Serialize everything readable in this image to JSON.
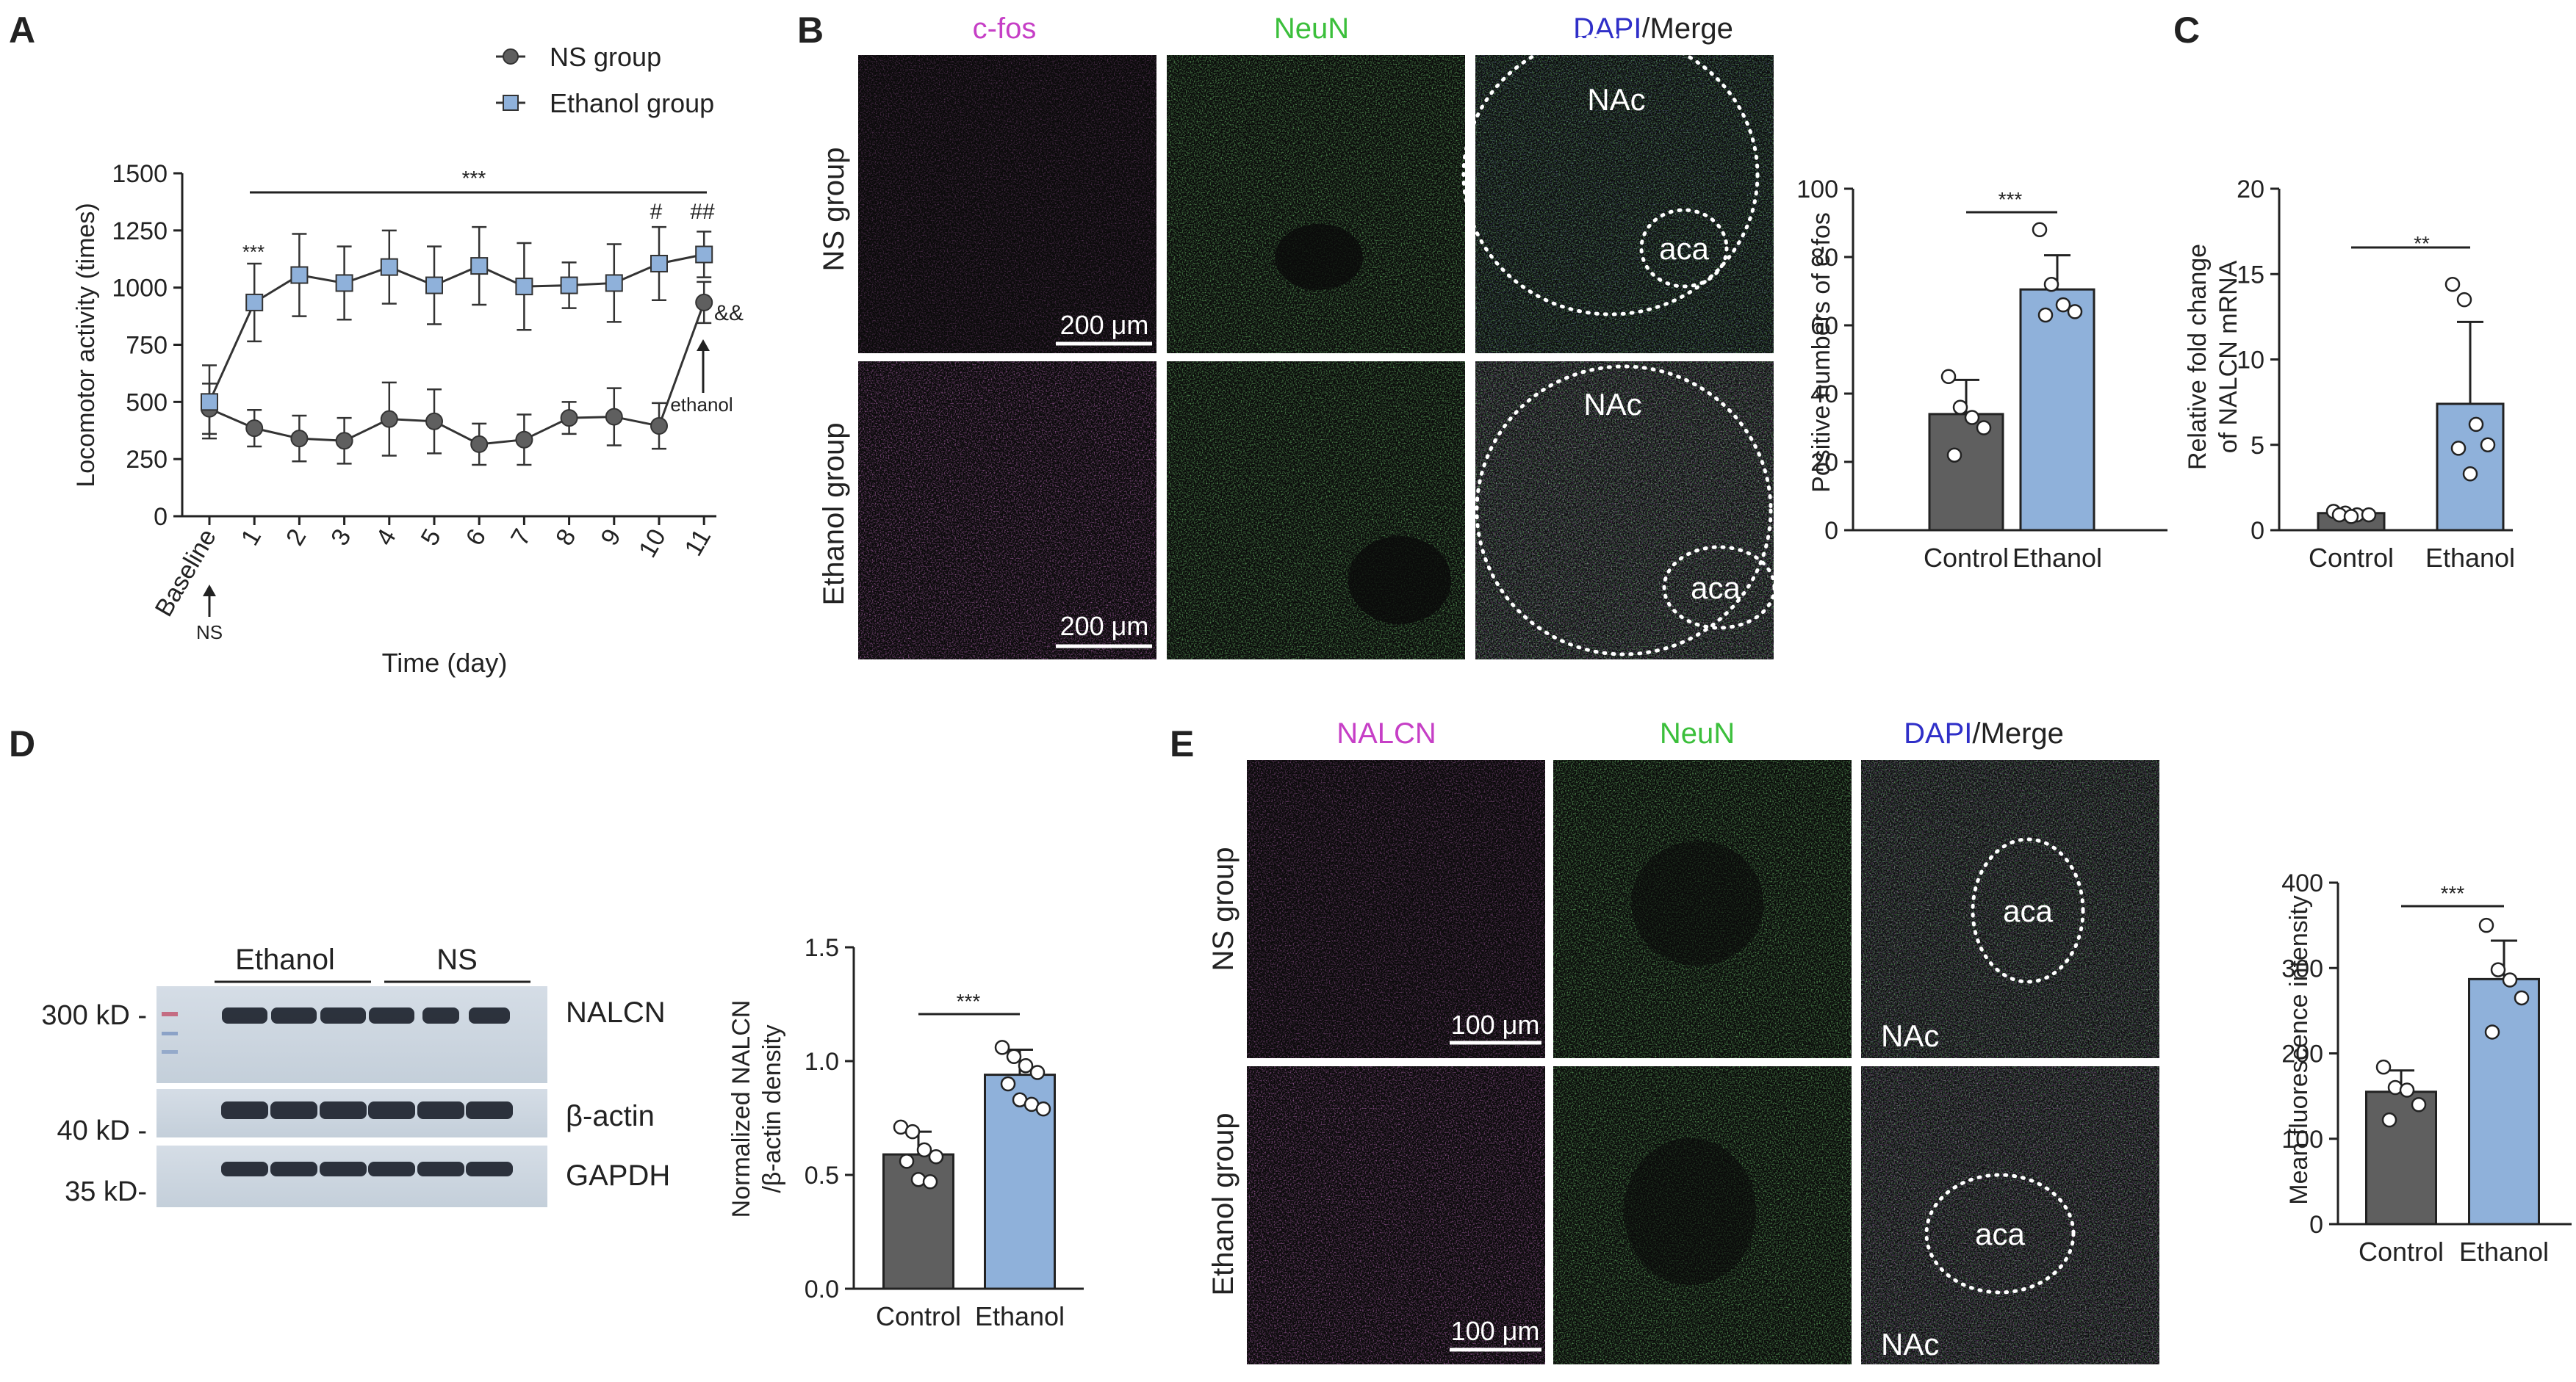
{
  "panel_letters": {
    "A": "A",
    "B": "B",
    "C": "C",
    "D": "D",
    "E": "E"
  },
  "colors": {
    "ns": "#5f5f5f",
    "ethanol": "#8fb1da",
    "cfos": "#c63fc6",
    "neun": "#3bbf3b",
    "dapi": "#2f2fc8",
    "micrograph_bg": "#0a0a0a"
  },
  "panel_a": {
    "legend": [
      "NS group",
      "Ethanol group"
    ],
    "ylabel": "Locomotor activity (times)",
    "xlabel": "Time (day)",
    "x_ticks": [
      "Baseline",
      "1",
      "2",
      "3",
      "4",
      "5",
      "6",
      "7",
      "8",
      "9",
      "10",
      "11"
    ],
    "y_ticks": [
      "0",
      "250",
      "500",
      "750",
      "1000",
      "1250",
      "1500"
    ],
    "sig_top": "***",
    "sig_day1": "***",
    "sig_day10": "#",
    "sig_day11": "##",
    "sig_ns11": "&&",
    "arrow_ns_label": "NS",
    "arrow_ethanol_label": "ethanol"
  },
  "panel_b": {
    "col_headers": {
      "cfos": "c-fos",
      "neun": "NeuN",
      "dapi": "DAPI",
      "merge": "/Merge"
    },
    "row_labels": [
      "NS group",
      "Ethanol group"
    ],
    "scale_bar": "200 μm",
    "region_nac": "NAc",
    "region_aca": "aca",
    "chart_ylabel": "Positive numbers of c-fos",
    "chart_y_ticks": [
      "0",
      "20",
      "40",
      "60",
      "80",
      "100"
    ],
    "chart_categories": [
      "Control",
      "Ethanol"
    ],
    "chart_sig": "***"
  },
  "panel_c": {
    "ylabel_line1": "Relative fold change",
    "ylabel_line2": "of NALCN mRNA",
    "y_ticks": [
      "0",
      "5",
      "10",
      "15",
      "20"
    ],
    "categories": [
      "Control",
      "Ethanol"
    ],
    "sig": "**"
  },
  "panel_d": {
    "group_labels": [
      "Ethanol",
      "NS"
    ],
    "kd_labels": [
      "300 kD -",
      "40 kD -",
      "35 kD-"
    ],
    "band_labels": [
      "NALCN",
      "β-actin",
      "GAPDH"
    ],
    "ylabel_line1": "Normalized NALCN",
    "ylabel_line2": "/β-actin density",
    "y_ticks": [
      "0.0",
      "0.5",
      "1.0",
      "1.5"
    ],
    "categories": [
      "Control",
      "Ethanol"
    ],
    "sig": "***"
  },
  "panel_e": {
    "col_headers": {
      "nalcn": "NALCN",
      "neun": "NeuN",
      "dapi": "DAPI",
      "merge": "/Merge"
    },
    "row_labels": [
      "NS group",
      "Ethanol group"
    ],
    "scale_bar": "100 μm",
    "region_aca": "aca",
    "region_nac": "NAc",
    "ylabel": "Mean fluorescence intensity",
    "y_ticks": [
      "0",
      "100",
      "200",
      "300",
      "400"
    ],
    "categories": [
      "Control",
      "Ethanol"
    ],
    "sig": "***"
  },
  "chart_data": [
    {
      "type": "line",
      "id": "A",
      "xlabel": "Time (day)",
      "ylabel": "Locomotor activity (times)",
      "x": [
        "Baseline",
        "1",
        "2",
        "3",
        "4",
        "5",
        "6",
        "7",
        "8",
        "9",
        "10",
        "11"
      ],
      "ylim": [
        0,
        1500
      ],
      "series": [
        {
          "name": "NS group",
          "values": [
            470,
            385,
            340,
            330,
            425,
            415,
            315,
            335,
            430,
            435,
            395,
            935
          ],
          "err": [
            110,
            80,
            100,
            100,
            160,
            140,
            90,
            110,
            70,
            125,
            100,
            90
          ]
        },
        {
          "name": "Ethanol group",
          "values": [
            500,
            935,
            1055,
            1020,
            1090,
            1010,
            1095,
            1005,
            1010,
            1020,
            1105,
            1145
          ],
          "err": [
            160,
            170,
            180,
            160,
            160,
            170,
            170,
            190,
            100,
            170,
            160,
            100
          ]
        }
      ]
    },
    {
      "type": "bar",
      "id": "B",
      "ylabel": "Positive numbers of c-fos",
      "categories": [
        "Control",
        "Ethanol"
      ],
      "values": [
        34,
        70.5
      ],
      "err": [
        10,
        10
      ],
      "points": [
        [
          45,
          36,
          33,
          30,
          22
        ],
        [
          88,
          72,
          66,
          64,
          63
        ]
      ],
      "ylim": [
        0,
        100
      ]
    },
    {
      "type": "bar",
      "id": "C",
      "ylabel": "Relative fold change of NALCN mRNA",
      "categories": [
        "Control",
        "Ethanol"
      ],
      "values": [
        1.0,
        7.4
      ],
      "err": [
        0.15,
        4.8
      ],
      "points": [
        [
          1.1,
          1.0,
          0.9,
          0.9,
          0.9,
          0.8
        ],
        [
          14.4,
          13.5,
          6.2,
          5.0,
          4.8,
          3.3
        ]
      ],
      "ylim": [
        0,
        20
      ]
    },
    {
      "type": "bar",
      "id": "D",
      "ylabel": "Normalized NALCN /β-actin density",
      "categories": [
        "Control",
        "Ethanol"
      ],
      "values": [
        0.59,
        0.94
      ],
      "err": [
        0.1,
        0.11
      ],
      "points": [
        [
          0.71,
          0.69,
          0.61,
          0.58,
          0.56,
          0.48,
          0.47
        ],
        [
          1.06,
          1.02,
          0.98,
          0.95,
          0.9,
          0.83,
          0.81,
          0.79
        ]
      ],
      "ylim": [
        0,
        1.5
      ]
    },
    {
      "type": "bar",
      "id": "E",
      "ylabel": "Mean fluorescence intensity",
      "categories": [
        "Control",
        "Ethanol"
      ],
      "values": [
        155,
        287
      ],
      "err": [
        25,
        45
      ],
      "points": [
        [
          184,
          160,
          157,
          140,
          122
        ],
        [
          350,
          298,
          286,
          265,
          225
        ]
      ],
      "ylim": [
        0,
        400
      ]
    }
  ]
}
